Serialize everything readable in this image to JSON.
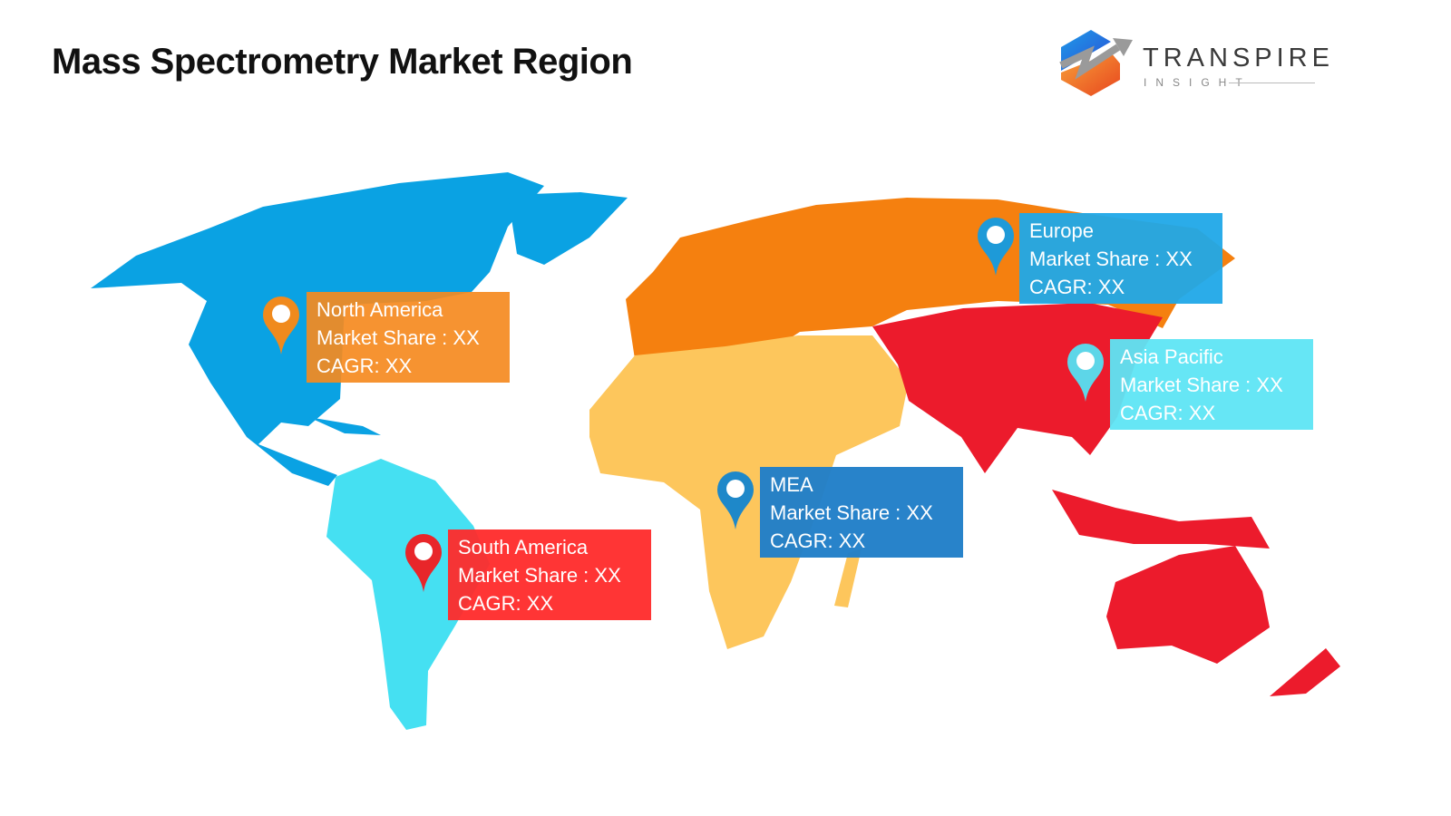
{
  "title": "Mass Spectrometry Market Region",
  "logo": {
    "name": "TRANSPIRE",
    "sub": "INSIGHT"
  },
  "regions": [
    {
      "id": "north-america",
      "name": "North America",
      "share": "Market Share : XX",
      "cagr": "CAGR: XX",
      "map_color": "#0aa2e3",
      "box_color": "#f58a1f",
      "pin_color": "#f08a1d"
    },
    {
      "id": "south-america",
      "name": "South America",
      "share": "Market Share : XX",
      "cagr": "CAGR: XX",
      "map_color": "#45e0f2",
      "box_color": "#ff2a2a",
      "pin_color": "#e8262a"
    },
    {
      "id": "mea",
      "name": "MEA",
      "share": "Market Share : XX",
      "cagr": "CAGR: XX",
      "map_color": "#fdc65c",
      "box_color": "#217fc8",
      "pin_color": "#1e88c9"
    },
    {
      "id": "europe",
      "name": "Europe",
      "share": "Market Share : XX",
      "cagr": "CAGR: XX",
      "map_color": "#f5800f",
      "box_color": "#20a8e8",
      "pin_color": "#1e9ad8"
    },
    {
      "id": "asia-pacific",
      "name": "Asia Pacific",
      "share": "Market Share : XX",
      "cagr": "CAGR: XX",
      "map_color": "#ec1b2c",
      "box_color": "#5ee5f4",
      "pin_color": "#5dd6e8"
    }
  ]
}
